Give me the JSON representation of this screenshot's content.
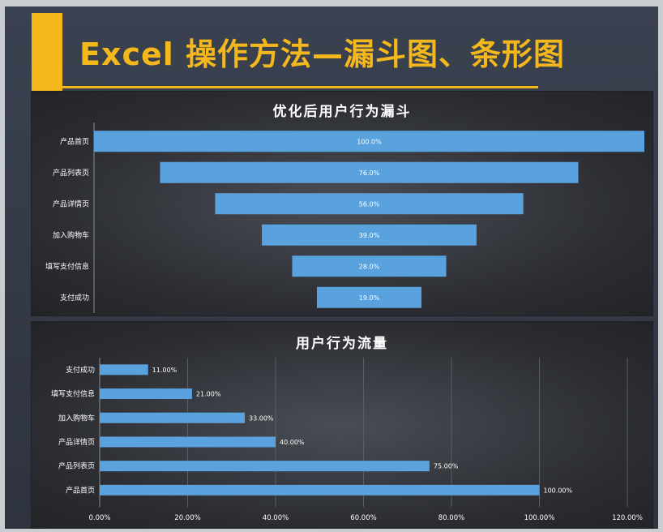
{
  "slide": {
    "title": "Excel 操作方法—漏斗图、条形图",
    "accent_color": "#f5b81c"
  },
  "chart_data": [
    {
      "type": "bar",
      "subtype": "funnel",
      "title": "优化后用户行为漏斗",
      "categories": [
        "产品首页",
        "产品列表页",
        "产品详情页",
        "加入购物车",
        "填写支付信息",
        "支付成功"
      ],
      "values": [
        100.0,
        76.0,
        56.0,
        39.0,
        28.0,
        19.0
      ],
      "data_labels": [
        "100.0%",
        "76.0%",
        "56.0%",
        "39.0%",
        "28.0%",
        "19.0%"
      ],
      "bar_color": "#5aa2de",
      "grid": false
    },
    {
      "type": "bar",
      "orientation": "horizontal",
      "title": "用户行为流量",
      "categories": [
        "支付成功",
        "填写支付信息",
        "加入购物车",
        "产品详情页",
        "产品列表页",
        "产品首页"
      ],
      "values": [
        11.0,
        21.0,
        33.0,
        40.0,
        75.0,
        100.0
      ],
      "data_labels": [
        "11.00%",
        "21.00%",
        "33.00%",
        "40.00%",
        "75.00%",
        "100.00%"
      ],
      "xlim": [
        0,
        120
      ],
      "x_ticks": [
        "0.00%",
        "20.00%",
        "40.00%",
        "60.00%",
        "80.00%",
        "100.00%",
        "120.00%"
      ],
      "bar_color": "#5aa2de",
      "grid": true
    }
  ]
}
